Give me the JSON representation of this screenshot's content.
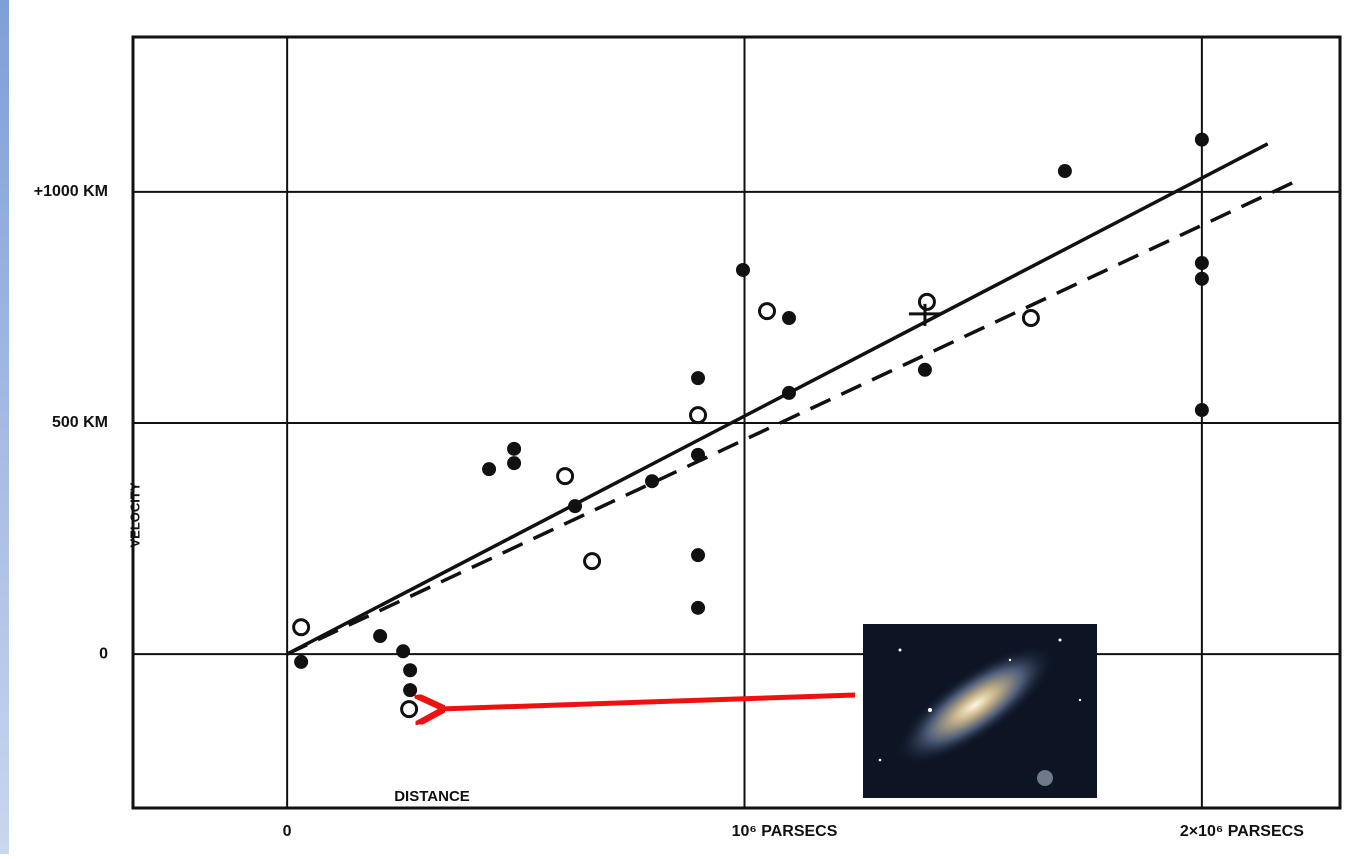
{
  "chart_data": {
    "type": "scatter",
    "x_label": "DISTANCE",
    "y_label": "VELOCITY",
    "xlim": [
      -337000,
      2302000
    ],
    "xticks": [
      0,
      {
        "value": 1000000,
        "label": "10⁶ PARSECS"
      },
      {
        "value": 2000000,
        "label": "2×10⁶ PARSECS"
      }
    ],
    "ylim": [
      -333,
      1335
    ],
    "yticks": [
      0,
      {
        "value": 500,
        "label": "500 KM"
      },
      {
        "value": 1000,
        "label": "+1000 KM"
      }
    ],
    "grid": true,
    "series": [
      {
        "marker": "filled",
        "color": "#111111",
        "x": [
          30600,
          203300,
          253600,
          268900,
          268900,
          441500,
          496200,
          496200,
          629500,
          797800,
          898400,
          898400,
          898400,
          898400,
          996700,
          1097300,
          1097300,
          1394500,
          1700500,
          2000000,
          2000000,
          2000000,
          2000000
        ],
        "values": [
          -17,
          39,
          6,
          -35,
          -78,
          400,
          444,
          413,
          320,
          374,
          597,
          431,
          214,
          100,
          831,
          727,
          565,
          615,
          1045,
          1113,
          846,
          812,
          528
        ]
      },
      {
        "marker": "open",
        "color": "#111111",
        "x": [
          30600,
          266700,
          607700,
          666700,
          898400,
          1049200,
          1398900,
          1626200
        ],
        "values": [
          58,
          -119,
          385,
          201,
          517,
          742,
          762,
          727
        ]
      },
      {
        "marker": "cross",
        "color": "#111111",
        "x": [
          1394500
        ],
        "values": [
          736
        ]
      }
    ],
    "lines": [
      {
        "style": "solid",
        "color": "#111111",
        "x": [
          0,
          2144000
        ],
        "values": [
          0,
          1104
        ]
      },
      {
        "style": "dashed",
        "color": "#111111",
        "x": [
          0,
          2207700
        ],
        "values": [
          0,
          1024
        ]
      }
    ]
  }
}
